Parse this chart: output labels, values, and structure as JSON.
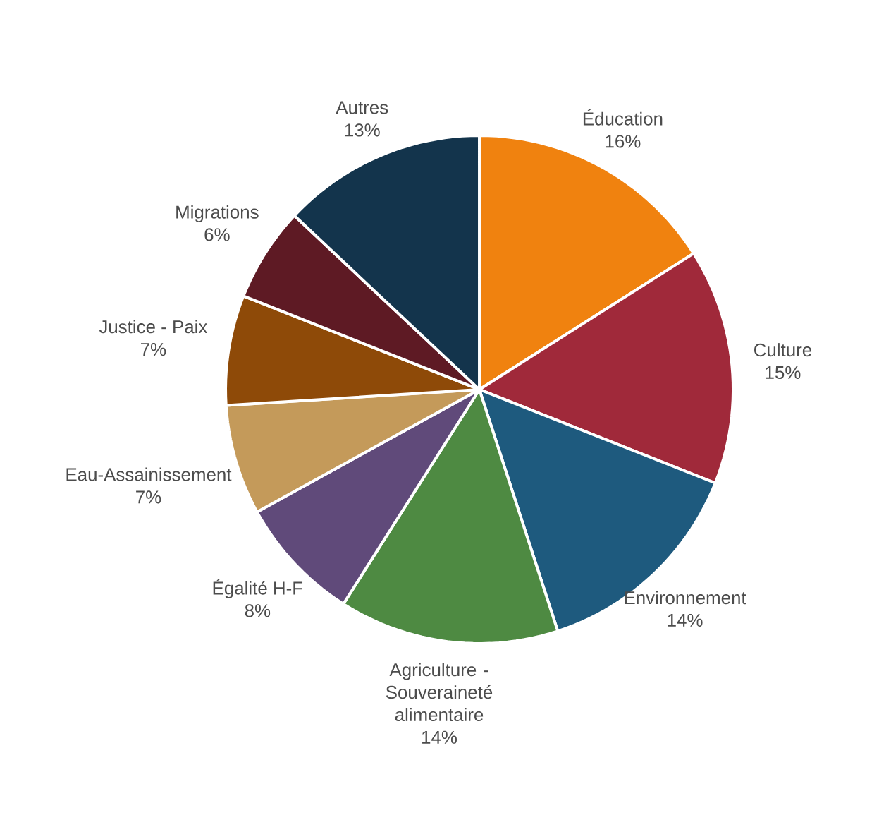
{
  "chart_data": {
    "type": "pie",
    "categories": [
      "Éducation",
      "Culture",
      "Environnement",
      "Agriculture - Souveraineté alimentaire",
      "Égalité H-F",
      "Eau-Assainissement",
      "Justice - Paix",
      "Migrations",
      "Autres"
    ],
    "values": [
      16,
      15,
      14,
      14,
      8,
      7,
      7,
      6,
      13
    ],
    "value_labels": [
      "16%",
      "15%",
      "14%",
      "14%",
      "8%",
      "7%",
      "7%",
      "6%",
      "13%"
    ],
    "colors": [
      "#f0820f",
      "#a0293a",
      "#1e5a7e",
      "#4e8a42",
      "#604a7a",
      "#c49a5a",
      "#8e4a08",
      "#5e1a24",
      "#13344c"
    ]
  }
}
